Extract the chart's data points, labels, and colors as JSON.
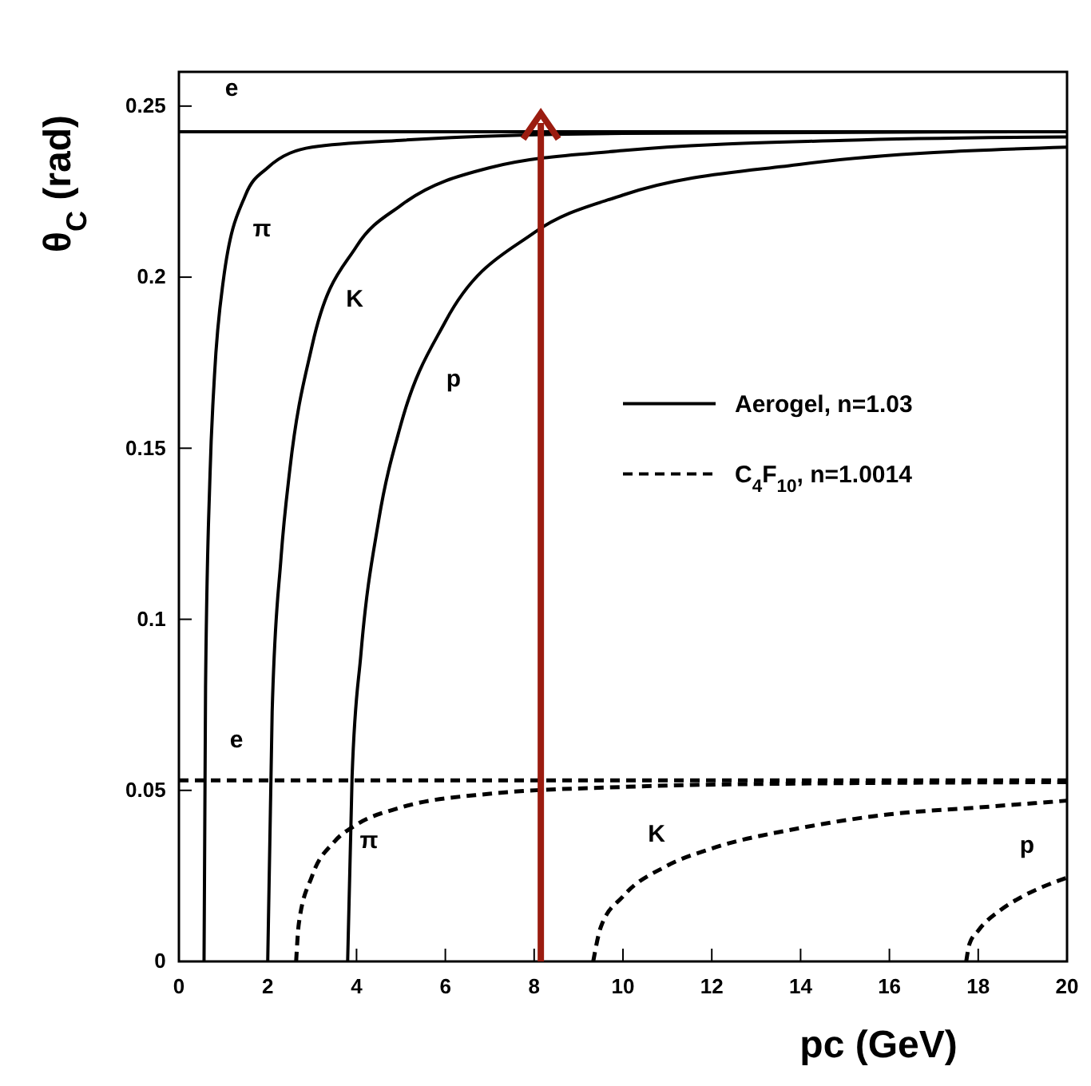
{
  "chart_data": {
    "type": "line",
    "xlabel": "pc  (GeV)",
    "ylabel": "θ$_{C}$ (rad)",
    "xlim": [
      0,
      20
    ],
    "ylim": [
      0,
      0.26
    ],
    "xticks": [
      0,
      2,
      4,
      6,
      8,
      10,
      12,
      14,
      16,
      18,
      20
    ],
    "yticks": [
      0,
      {
        "value": 0.05,
        "label": "0.05"
      },
      {
        "value": 0.1,
        "label": "0.1"
      },
      {
        "value": 0.15,
        "label": "0.15"
      },
      {
        "value": 0.2,
        "label": "0.2"
      },
      {
        "value": 0.25,
        "label": "0.25"
      }
    ],
    "grid": false,
    "legend": "right",
    "marker": "none",
    "series": [
      {
        "name": "Aerogel, n=1.03",
        "color": "#000000",
        "line_style": "solid",
        "x": [
          0,
          20
        ],
        "values": [
          0.2425,
          0.2425
        ]
      },
      {
        "color": "#000000",
        "line_style": "solid",
        "x": [
          0.566,
          0.6,
          0.7,
          0.8,
          1,
          1.5,
          2,
          3,
          5,
          10,
          20
        ],
        "values": [
          0,
          0.08,
          0.142,
          0.171,
          0.199,
          0.224,
          0.232,
          0.238,
          0.24,
          0.242,
          0.2425
        ]
      },
      {
        "color": "#000000",
        "line_style": "solid",
        "x": [
          2.0,
          2.1,
          2.3,
          2.5,
          3,
          4,
          5,
          7,
          10,
          15,
          20
        ],
        "values": [
          0,
          0.073,
          0.118,
          0.144,
          0.18,
          0.209,
          0.221,
          0.232,
          0.237,
          0.24,
          0.241
        ]
      },
      {
        "color": "#000000",
        "line_style": "solid",
        "x": [
          3.8,
          3.9,
          4.1,
          4.5,
          5,
          6,
          8,
          10,
          14,
          20
        ],
        "values": [
          0,
          0.054,
          0.09,
          0.129,
          0.157,
          0.187,
          0.213,
          0.224,
          0.233,
          0.238
        ]
      },
      {
        "name": "C$_{4}$F$_{10}$, n=1.0014",
        "color": "#000000",
        "line_style": "dashed",
        "x": [
          0,
          20
        ],
        "values": [
          0.0529,
          0.0529
        ]
      },
      {
        "color": "#000000",
        "line_style": "dashed",
        "x": [
          2.64,
          2.7,
          3,
          3.5,
          4,
          5,
          7,
          10,
          14,
          20
        ],
        "values": [
          0,
          0.011,
          0.025,
          0.035,
          0.04,
          0.045,
          0.049,
          0.051,
          0.052,
          0.0524
        ]
      },
      {
        "color": "#000000",
        "line_style": "dashed",
        "x": [
          9.33,
          9.5,
          10,
          11,
          12,
          14,
          16,
          18,
          20
        ],
        "values": [
          0,
          0.01,
          0.019,
          0.028,
          0.033,
          0.039,
          0.043,
          0.045,
          0.047
        ]
      },
      {
        "color": "#000000",
        "line_style": "dashed",
        "x": [
          17.73,
          17.8,
          18,
          18.5,
          19,
          20
        ],
        "values": [
          0,
          0.005,
          0.009,
          0.015,
          0.019,
          0.0245
        ]
      }
    ],
    "ref_lines": [
      {
        "axis": "x",
        "value": 8.15,
        "color": "#9b1c10"
      }
    ],
    "annotations": [
      "e",
      "π",
      "K",
      "p",
      "e",
      "π",
      "K",
      "p"
    ]
  }
}
